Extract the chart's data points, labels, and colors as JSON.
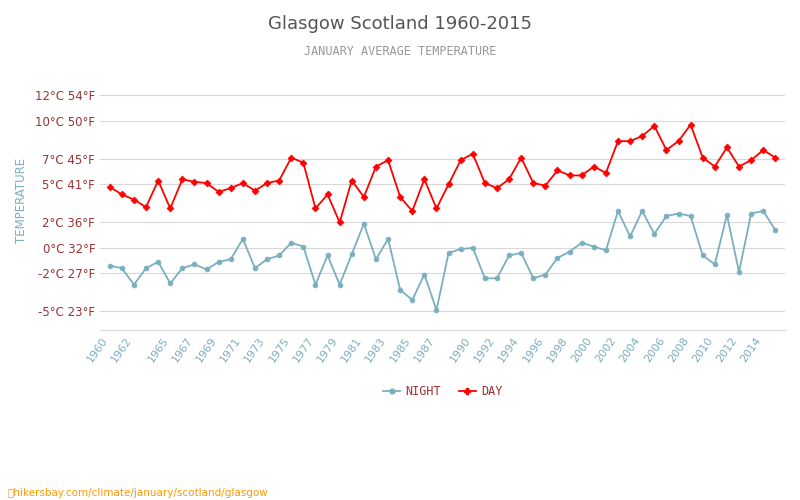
{
  "title": "Glasgow Scotland 1960-2015",
  "subtitle": "JANUARY AVERAGE TEMPERATURE",
  "ylabel": "TEMPERATURE",
  "xlabel_url": "hikersbay.com/climate/january/scotland/glasgow",
  "background_color": "#ffffff",
  "grid_color": "#d8d8d8",
  "years": [
    1960,
    1961,
    1962,
    1963,
    1964,
    1965,
    1966,
    1967,
    1968,
    1969,
    1970,
    1971,
    1972,
    1973,
    1974,
    1975,
    1976,
    1977,
    1978,
    1979,
    1980,
    1981,
    1982,
    1983,
    1984,
    1985,
    1986,
    1987,
    1988,
    1989,
    1990,
    1991,
    1992,
    1993,
    1994,
    1995,
    1996,
    1997,
    1998,
    1999,
    2000,
    2001,
    2002,
    2003,
    2004,
    2005,
    2006,
    2007,
    2008,
    2009,
    2010,
    2011,
    2012,
    2013,
    2014,
    2015
  ],
  "day_temps": [
    4.8,
    4.2,
    3.8,
    3.2,
    5.3,
    3.1,
    5.4,
    5.2,
    5.1,
    4.4,
    4.7,
    5.1,
    4.5,
    5.1,
    5.3,
    7.1,
    6.7,
    3.1,
    4.2,
    2.0,
    5.3,
    4.0,
    6.4,
    6.9,
    4.0,
    2.9,
    5.4,
    3.1,
    5.0,
    6.9,
    7.4,
    5.1,
    4.7,
    5.4,
    7.1,
    5.1,
    4.9,
    6.1,
    5.7,
    5.7,
    6.4,
    5.9,
    8.4,
    8.4,
    8.8,
    9.6,
    7.7,
    8.4,
    9.7,
    7.1,
    6.4,
    7.9,
    6.4,
    6.9,
    7.7,
    7.1
  ],
  "night_temps": [
    -1.4,
    -1.6,
    -2.9,
    -1.6,
    -1.1,
    -2.8,
    -1.6,
    -1.3,
    -1.7,
    -1.1,
    -0.9,
    0.7,
    -1.6,
    -0.9,
    -0.6,
    0.4,
    0.1,
    -2.9,
    -0.6,
    -2.9,
    -0.5,
    1.9,
    -0.9,
    0.7,
    -3.3,
    -4.1,
    -2.1,
    -4.9,
    -0.4,
    -0.1,
    0.0,
    -2.4,
    -2.4,
    -0.6,
    -0.4,
    -2.4,
    -2.1,
    -0.8,
    -0.3,
    0.4,
    0.1,
    -0.2,
    2.9,
    0.9,
    2.9,
    1.1,
    2.5,
    2.7,
    2.5,
    -0.6,
    -1.3,
    2.6,
    -1.9,
    2.7,
    2.9,
    1.4
  ],
  "day_color": "#ff0000",
  "night_color": "#7aafc0",
  "marker_size": 3.5,
  "title_color": "#555555",
  "subtitle_color": "#999999",
  "ylabel_color": "#7aafc0",
  "tick_color": "#993333",
  "xtick_color": "#7aafc0",
  "yticks_c": [
    -5,
    -2,
    0,
    2,
    5,
    7,
    10,
    12
  ],
  "yticks_f": [
    23,
    27,
    32,
    36,
    41,
    45,
    50,
    54
  ],
  "ylim": [
    -6.5,
    14.0
  ],
  "xlim_left": 1959.2,
  "xlim_right": 2015.8,
  "xtick_labels": [
    "1960",
    "1962",
    "1965",
    "1967",
    "1969",
    "1971",
    "1973",
    "1975",
    "1977",
    "1979",
    "1981",
    "1983",
    "1985",
    "1987",
    "1990",
    "1992",
    "1994",
    "1996",
    "1998",
    "2000",
    "2002",
    "2004",
    "2006",
    "2008",
    "2010",
    "2012",
    "2014"
  ],
  "xtick_values": [
    1960,
    1962,
    1965,
    1967,
    1969,
    1971,
    1973,
    1975,
    1977,
    1979,
    1981,
    1983,
    1985,
    1987,
    1990,
    1992,
    1994,
    1996,
    1998,
    2000,
    2002,
    2004,
    2006,
    2008,
    2010,
    2012,
    2014
  ],
  "legend_night": "NIGHT",
  "legend_day": "DAY"
}
